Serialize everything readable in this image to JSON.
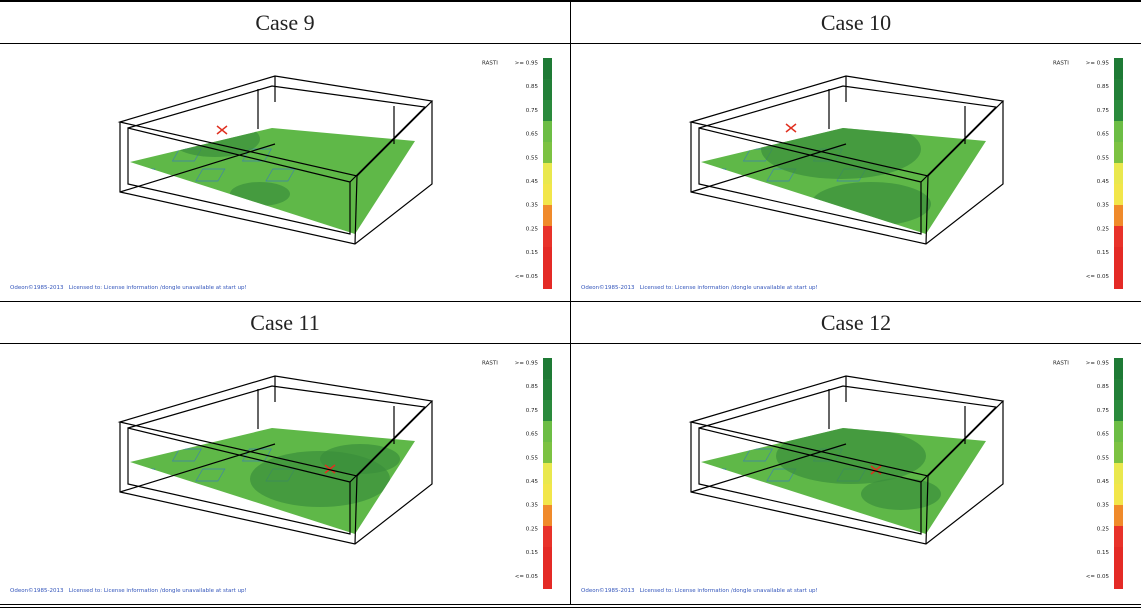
{
  "table": {
    "rows": [
      {
        "cells": [
          {
            "title": "Case 9"
          },
          {
            "title": "Case 10"
          }
        ]
      },
      {
        "cells": [
          {
            "title": "Case 11"
          },
          {
            "title": "Case 12"
          }
        ]
      }
    ]
  },
  "figure_legend": {
    "title": "RASTI",
    "labels": [
      ">= 0.95",
      "0.85",
      "0.75",
      "0.65",
      "0.55",
      "0.45",
      "0.35",
      "0.25",
      "0.15",
      "<= 0.05"
    ]
  },
  "figure_footer": "Odeon©1985-2013   Licensed to: License information /dongle unavailable at start up!"
}
